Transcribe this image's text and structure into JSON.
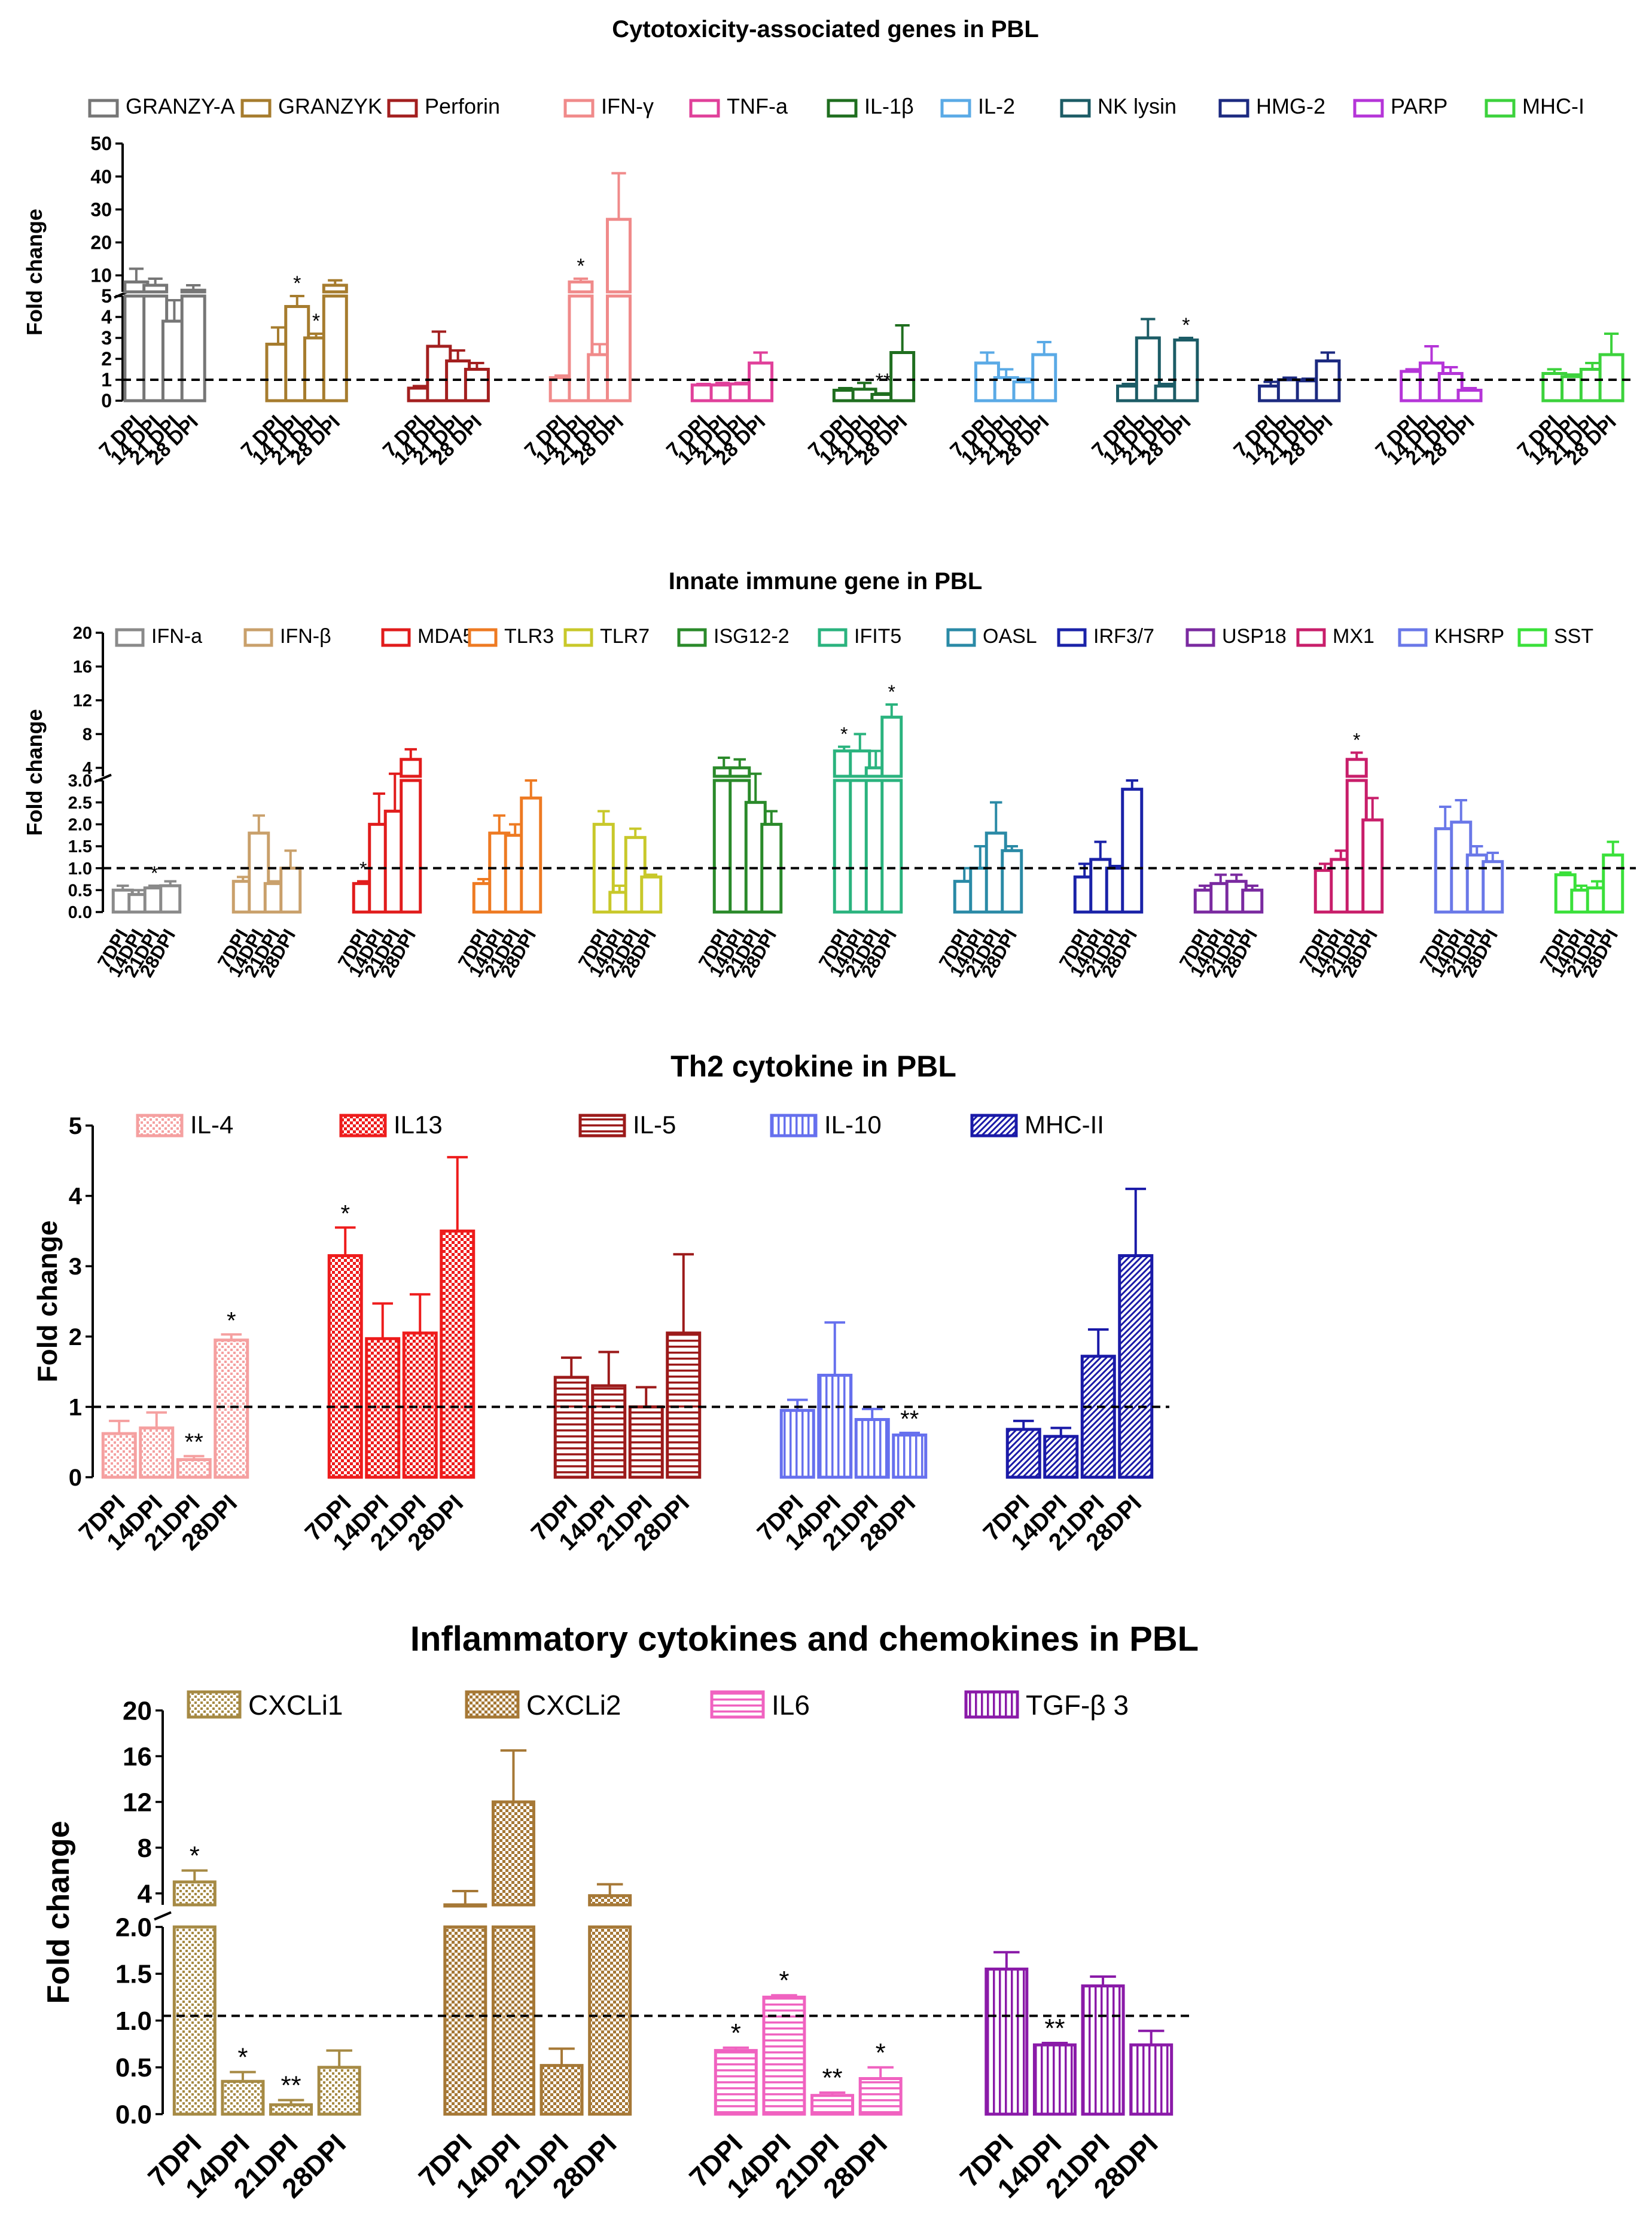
{
  "chart_data": [
    {
      "type": "bar",
      "title": "Cytotoxicity-associated genes in PBL",
      "ylabel": "Fold change",
      "xlabel": "",
      "reference_line": 1,
      "categories": [
        "7 DPI",
        "14 DPI",
        "21 DPI",
        "28 DPI"
      ],
      "y_axis_segments": [
        {
          "ylim": [
            0,
            5
          ],
          "ticks": [
            "0",
            "1",
            "2",
            "3",
            "4",
            "5"
          ]
        },
        {
          "ylim": [
            5,
            50
          ],
          "ticks": [
            "10",
            "20",
            "30",
            "40",
            "50"
          ]
        }
      ],
      "series": [
        {
          "name": "GRANZY-A",
          "color": "#767676",
          "values": [
            8,
            7,
            3.8,
            5.5
          ],
          "errors": [
            4,
            2,
            1.0,
            1.5
          ],
          "sig": [
            "",
            "",
            "",
            ""
          ]
        },
        {
          "name": "GRANZYK",
          "color": "#a67c2e",
          "values": [
            2.7,
            4.5,
            3.0,
            7
          ],
          "errors": [
            0.8,
            0.5,
            0.2,
            1.5
          ],
          "sig": [
            "",
            "*",
            "*",
            ""
          ]
        },
        {
          "name": "Perforin",
          "color": "#a31f1f",
          "values": [
            0.6,
            2.6,
            1.9,
            1.5
          ],
          "errors": [
            0.1,
            0.7,
            0.5,
            0.3
          ],
          "sig": [
            "",
            "",
            "",
            ""
          ]
        },
        {
          "name": "IFN-γ",
          "color": "#f08a8a",
          "values": [
            1.1,
            8,
            2.2,
            27
          ],
          "errors": [
            0.1,
            1,
            0.5,
            14
          ],
          "sig": [
            "",
            "*",
            "",
            ""
          ]
        },
        {
          "name": "TNF-a",
          "color": "#e0409a",
          "values": [
            0.75,
            0.75,
            0.8,
            1.8
          ],
          "errors": [
            0.05,
            0.1,
            0.05,
            0.5
          ],
          "sig": [
            "",
            "",
            "",
            ""
          ]
        },
        {
          "name": "IL-1β",
          "color": "#1f6e1f",
          "values": [
            0.5,
            0.55,
            0.3,
            2.3
          ],
          "errors": [
            0.1,
            0.3,
            0.05,
            1.3
          ],
          "sig": [
            "",
            "",
            "**",
            ""
          ]
        },
        {
          "name": "IL-2",
          "color": "#5aaae6",
          "values": [
            1.8,
            1.1,
            0.9,
            2.2
          ],
          "errors": [
            0.5,
            0.4,
            0.15,
            0.6
          ],
          "sig": [
            "",
            "",
            "",
            ""
          ]
        },
        {
          "name": "NK lysin",
          "color": "#1c5c66",
          "values": [
            0.7,
            3.0,
            0.7,
            2.9
          ],
          "errors": [
            0.1,
            0.9,
            0.1,
            0.1
          ],
          "sig": [
            "",
            "",
            "",
            "*"
          ]
        },
        {
          "name": "HMG-2",
          "color": "#1c2a80",
          "values": [
            0.7,
            1.0,
            0.95,
            1.9
          ],
          "errors": [
            0.2,
            0.1,
            0.1,
            0.4
          ],
          "sig": [
            "",
            "",
            "",
            ""
          ]
        },
        {
          "name": "PARP",
          "color": "#b535d8",
          "values": [
            1.4,
            1.8,
            1.3,
            0.5
          ],
          "errors": [
            0.1,
            0.8,
            0.3,
            0.1
          ],
          "sig": [
            "",
            "",
            "",
            ""
          ]
        },
        {
          "name": "MHC-I",
          "color": "#3cd23c",
          "values": [
            1.3,
            1.15,
            1.5,
            2.2
          ],
          "errors": [
            0.2,
            0.1,
            0.3,
            1.0
          ],
          "sig": [
            "",
            "",
            "",
            ""
          ]
        }
      ]
    },
    {
      "type": "bar",
      "title": "Innate immune gene in PBL",
      "ylabel": "Fold change",
      "xlabel": "",
      "reference_line": 1,
      "categories": [
        "7DPI",
        "14DPI",
        "21DPI",
        "28DPI"
      ],
      "y_axis_segments": [
        {
          "ylim": [
            0,
            3
          ],
          "ticks": [
            "0.0",
            "0.5",
            "1.0",
            "1.5",
            "2.0",
            "2.5",
            "3.0"
          ]
        },
        {
          "ylim": [
            3,
            20
          ],
          "ticks": [
            "4",
            "8",
            "12",
            "16",
            "20"
          ]
        }
      ],
      "series": [
        {
          "name": "IFN-a",
          "color": "#8a8a8a",
          "values": [
            0.5,
            0.4,
            0.55,
            0.6
          ],
          "errors": [
            0.1,
            0.1,
            0.05,
            0.1
          ],
          "sig": [
            "",
            "",
            "*",
            ""
          ]
        },
        {
          "name": "IFN-β",
          "color": "#c9a06b",
          "values": [
            0.7,
            1.8,
            0.65,
            1.0
          ],
          "errors": [
            0.1,
            0.4,
            0.05,
            0.4
          ],
          "sig": [
            "",
            "",
            "",
            ""
          ]
        },
        {
          "name": "MDA5",
          "color": "#e11c1c",
          "values": [
            0.65,
            2.0,
            2.3,
            5
          ],
          "errors": [
            0.05,
            0.7,
            1.0,
            1.2
          ],
          "sig": [
            "*",
            "",
            "",
            ""
          ]
        },
        {
          "name": "TLR3",
          "color": "#ee7a22",
          "values": [
            0.65,
            1.8,
            1.75,
            2.6
          ],
          "errors": [
            0.1,
            0.4,
            0.25,
            0.4
          ],
          "sig": [
            "",
            "",
            "",
            ""
          ]
        },
        {
          "name": "TLR7",
          "color": "#c8c82a",
          "values": [
            2.0,
            0.45,
            1.7,
            0.8
          ],
          "errors": [
            0.3,
            0.15,
            0.2,
            0.05
          ],
          "sig": [
            "",
            "",
            "",
            ""
          ]
        },
        {
          "name": "ISG12-2",
          "color": "#2a8a2a",
          "values": [
            4,
            4,
            2.5,
            2.0
          ],
          "errors": [
            1.2,
            1.0,
            0.8,
            0.3
          ],
          "sig": [
            "",
            "",
            "",
            ""
          ]
        },
        {
          "name": "IFIT5",
          "color": "#2ab37e",
          "values": [
            6,
            6,
            4,
            10
          ],
          "errors": [
            0.5,
            2,
            2,
            1.5
          ],
          "sig": [
            "*",
            "",
            "",
            "*"
          ]
        },
        {
          "name": "OASL",
          "color": "#2a8aa6",
          "values": [
            0.7,
            1.0,
            1.8,
            1.4
          ],
          "errors": [
            0.3,
            0.5,
            0.7,
            0.1
          ],
          "sig": [
            "",
            "",
            "",
            ""
          ]
        },
        {
          "name": "IRF3/7",
          "color": "#1a22a8",
          "values": [
            0.8,
            1.2,
            1.0,
            2.8
          ],
          "errors": [
            0.3,
            0.4,
            0.05,
            0.2
          ],
          "sig": [
            "",
            "",
            "",
            ""
          ]
        },
        {
          "name": "USP18",
          "color": "#7a2aa0",
          "values": [
            0.5,
            0.65,
            0.7,
            0.5
          ],
          "errors": [
            0.1,
            0.2,
            0.15,
            0.1
          ],
          "sig": [
            "",
            "",
            "",
            ""
          ]
        },
        {
          "name": "MX1",
          "color": "#c81e6a",
          "values": [
            0.95,
            1.2,
            5,
            2.1
          ],
          "errors": [
            0.15,
            0.2,
            0.8,
            0.5
          ],
          "sig": [
            "",
            "",
            "*",
            ""
          ]
        },
        {
          "name": "KHSRP",
          "color": "#6a78e8",
          "values": [
            1.9,
            2.05,
            1.3,
            1.15
          ],
          "errors": [
            0.5,
            0.5,
            0.2,
            0.2
          ],
          "sig": [
            "",
            "",
            "",
            ""
          ]
        },
        {
          "name": "SST",
          "color": "#3ae03a",
          "values": [
            0.85,
            0.5,
            0.55,
            1.3
          ],
          "errors": [
            0.05,
            0.1,
            0.15,
            0.3
          ],
          "sig": [
            "",
            "",
            "",
            ""
          ]
        }
      ]
    },
    {
      "type": "bar",
      "title": "Th2 cytokine in PBL",
      "ylabel": "Fold change",
      "xlabel": "",
      "reference_line": 1,
      "categories": [
        "7DPI",
        "14DPI",
        "21DPI",
        "28DPI"
      ],
      "ylim": [
        0,
        5
      ],
      "yticks": [
        "0",
        "1",
        "2",
        "3",
        "4",
        "5"
      ],
      "series": [
        {
          "name": "IL-4",
          "color": "#f5a0a0",
          "pattern": "dots",
          "values": [
            0.62,
            0.7,
            0.25,
            1.95
          ],
          "errors": [
            0.18,
            0.22,
            0.05,
            0.08
          ],
          "sig": [
            "",
            "",
            "**",
            "*"
          ]
        },
        {
          "name": "IL13",
          "color": "#ee1c1c",
          "pattern": "checker",
          "values": [
            3.15,
            1.97,
            2.05,
            3.5
          ],
          "errors": [
            0.4,
            0.5,
            0.55,
            1.05
          ],
          "sig": [
            "*",
            "",
            "",
            ""
          ]
        },
        {
          "name": "IL-5",
          "color": "#9c1a1a",
          "pattern": "hlines",
          "values": [
            1.42,
            1.3,
            1.0,
            2.05
          ],
          "errors": [
            0.28,
            0.48,
            0.28,
            1.12
          ],
          "sig": [
            "",
            "",
            "",
            ""
          ]
        },
        {
          "name": "IL-10",
          "color": "#6670ee",
          "pattern": "vlines",
          "values": [
            0.95,
            1.45,
            0.82,
            0.6
          ],
          "errors": [
            0.15,
            0.75,
            0.15,
            0.03
          ],
          "sig": [
            "",
            "",
            "",
            "**"
          ]
        },
        {
          "name": "MHC-II",
          "color": "#1a1aa8",
          "pattern": "diag",
          "values": [
            0.68,
            0.58,
            1.72,
            3.15
          ],
          "errors": [
            0.12,
            0.12,
            0.38,
            0.95
          ],
          "sig": [
            "",
            "",
            "",
            ""
          ]
        }
      ]
    },
    {
      "type": "bar",
      "title": "Inflammatory cytokines and chemokines in PBL",
      "ylabel": "Fold change",
      "xlabel": "",
      "reference_line": 1.05,
      "categories": [
        "7DPI",
        "14DPI",
        "21DPI",
        "28DPI"
      ],
      "y_axis_segments": [
        {
          "ylim": [
            0,
            2
          ],
          "ticks": [
            "0.0",
            "0.5",
            "1.0",
            "1.5",
            "2.0"
          ]
        },
        {
          "ylim": [
            3,
            20
          ],
          "ticks": [
            "4",
            "8",
            "12",
            "16",
            "20"
          ]
        }
      ],
      "series": [
        {
          "name": "CXCLi1",
          "color": "#a68a44",
          "pattern": "dots",
          "values": [
            5,
            0.35,
            0.1,
            0.5
          ],
          "errors": [
            1,
            0.1,
            0.05,
            0.18
          ],
          "sig": [
            "*",
            "*",
            "**",
            ""
          ]
        },
        {
          "name": "CXCLi2",
          "color": "#a67836",
          "pattern": "checker",
          "values": [
            3,
            12,
            0.52,
            3.8
          ],
          "errors": [
            1.2,
            4.5,
            0.18,
            1.0
          ],
          "sig": [
            "",
            "",
            "",
            ""
          ]
        },
        {
          "name": "IL6",
          "color": "#f062c0",
          "pattern": "hlines",
          "values": [
            0.68,
            1.25,
            0.2,
            0.38
          ],
          "errors": [
            0.03,
            0.02,
            0.03,
            0.12
          ],
          "sig": [
            "*",
            "*",
            "**",
            "*"
          ]
        },
        {
          "name": "TGF-β 3",
          "color": "#8a1aa8",
          "pattern": "vlines",
          "values": [
            1.55,
            0.74,
            1.37,
            0.74
          ],
          "errors": [
            0.18,
            0.02,
            0.1,
            0.15
          ],
          "sig": [
            "",
            "**",
            "",
            ""
          ]
        }
      ]
    }
  ]
}
